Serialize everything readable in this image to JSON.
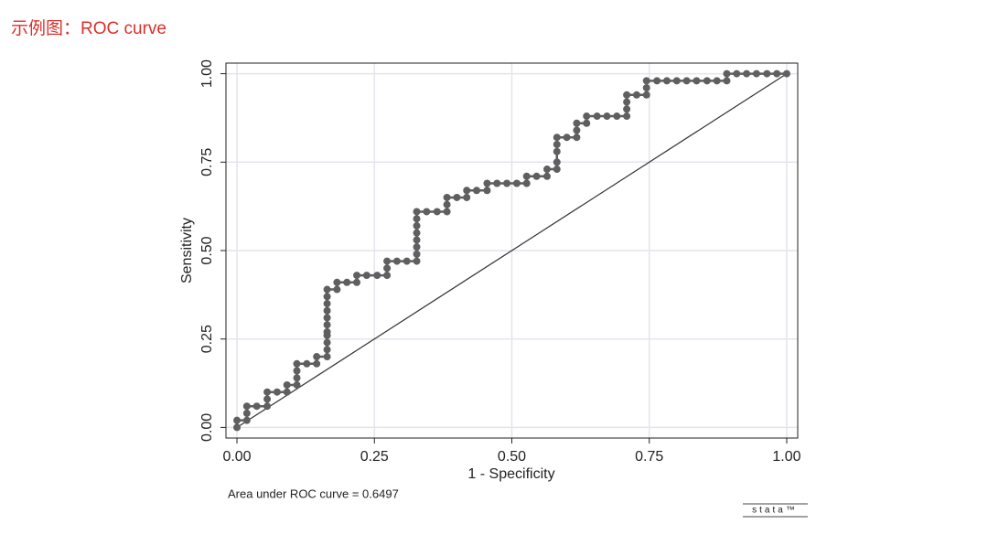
{
  "chart_data": {
    "type": "line",
    "title": "示例图：ROC curve",
    "xlabel": "1 - Specificity",
    "ylabel": "Sensitivity",
    "annotation": "Area under ROC curve = 0.6497",
    "logo": "stata™",
    "grid": true,
    "xlim": [
      -0.02,
      1.02
    ],
    "ylim": [
      -0.03,
      1.03
    ],
    "xticks": [
      {
        "value": 0,
        "label": "0.00"
      },
      {
        "value": 0.25,
        "label": "0.25"
      },
      {
        "value": 0.5,
        "label": "0.50"
      },
      {
        "value": 0.75,
        "label": "0.75"
      },
      {
        "value": 1,
        "label": "1.00"
      }
    ],
    "yticks": [
      {
        "value": 0,
        "label": "0.00"
      },
      {
        "value": 0.25,
        "label": "0.25"
      },
      {
        "value": 0.5,
        "label": "0.50"
      },
      {
        "value": 0.75,
        "label": "0.75"
      },
      {
        "value": 1,
        "label": "1.00"
      }
    ],
    "x": [
      0,
      0,
      0.018,
      0.018,
      0.018,
      0.036,
      0.055,
      0.055,
      0.055,
      0.073,
      0.091,
      0.091,
      0.109,
      0.109,
      0.109,
      0.109,
      0.127,
      0.145,
      0.145,
      0.164,
      0.164,
      0.164,
      0.164,
      0.164,
      0.164,
      0.164,
      0.164,
      0.164,
      0.164,
      0.164,
      0.182,
      0.182,
      0.2,
      0.218,
      0.218,
      0.236,
      0.255,
      0.273,
      0.273,
      0.273,
      0.291,
      0.309,
      0.327,
      0.327,
      0.327,
      0.327,
      0.327,
      0.327,
      0.327,
      0.327,
      0.345,
      0.364,
      0.382,
      0.382,
      0.382,
      0.4,
      0.418,
      0.418,
      0.436,
      0.455,
      0.455,
      0.473,
      0.491,
      0.509,
      0.527,
      0.527,
      0.545,
      0.564,
      0.564,
      0.582,
      0.582,
      0.582,
      0.582,
      0.582,
      0.6,
      0.618,
      0.618,
      0.618,
      0.636,
      0.636,
      0.655,
      0.673,
      0.691,
      0.709,
      0.709,
      0.709,
      0.709,
      0.727,
      0.745,
      0.745,
      0.745,
      0.764,
      0.782,
      0.8,
      0.818,
      0.836,
      0.855,
      0.873,
      0.891,
      0.891,
      0.909,
      0.927,
      0.945,
      0.964,
      0.982,
      1
    ],
    "series": [
      {
        "color": "#5f5f5f",
        "values": [
          0,
          0.02,
          0.02,
          0.04,
          0.06,
          0.06,
          0.06,
          0.08,
          0.1,
          0.1,
          0.1,
          0.12,
          0.12,
          0.14,
          0.16,
          0.18,
          0.18,
          0.18,
          0.2,
          0.2,
          0.22,
          0.24,
          0.26,
          0.27,
          0.29,
          0.31,
          0.33,
          0.35,
          0.37,
          0.39,
          0.39,
          0.41,
          0.41,
          0.41,
          0.43,
          0.43,
          0.43,
          0.43,
          0.45,
          0.47,
          0.47,
          0.47,
          0.47,
          0.49,
          0.51,
          0.53,
          0.55,
          0.57,
          0.59,
          0.61,
          0.61,
          0.61,
          0.61,
          0.63,
          0.65,
          0.65,
          0.65,
          0.67,
          0.67,
          0.67,
          0.69,
          0.69,
          0.69,
          0.69,
          0.69,
          0.71,
          0.71,
          0.71,
          0.73,
          0.73,
          0.75,
          0.78,
          0.8,
          0.82,
          0.82,
          0.82,
          0.84,
          0.86,
          0.86,
          0.88,
          0.88,
          0.88,
          0.88,
          0.88,
          0.9,
          0.92,
          0.94,
          0.94,
          0.94,
          0.96,
          0.98,
          0.98,
          0.98,
          0.98,
          0.98,
          0.98,
          0.98,
          0.98,
          0.98,
          1,
          1,
          1,
          1,
          1,
          1,
          1
        ]
      }
    ]
  }
}
